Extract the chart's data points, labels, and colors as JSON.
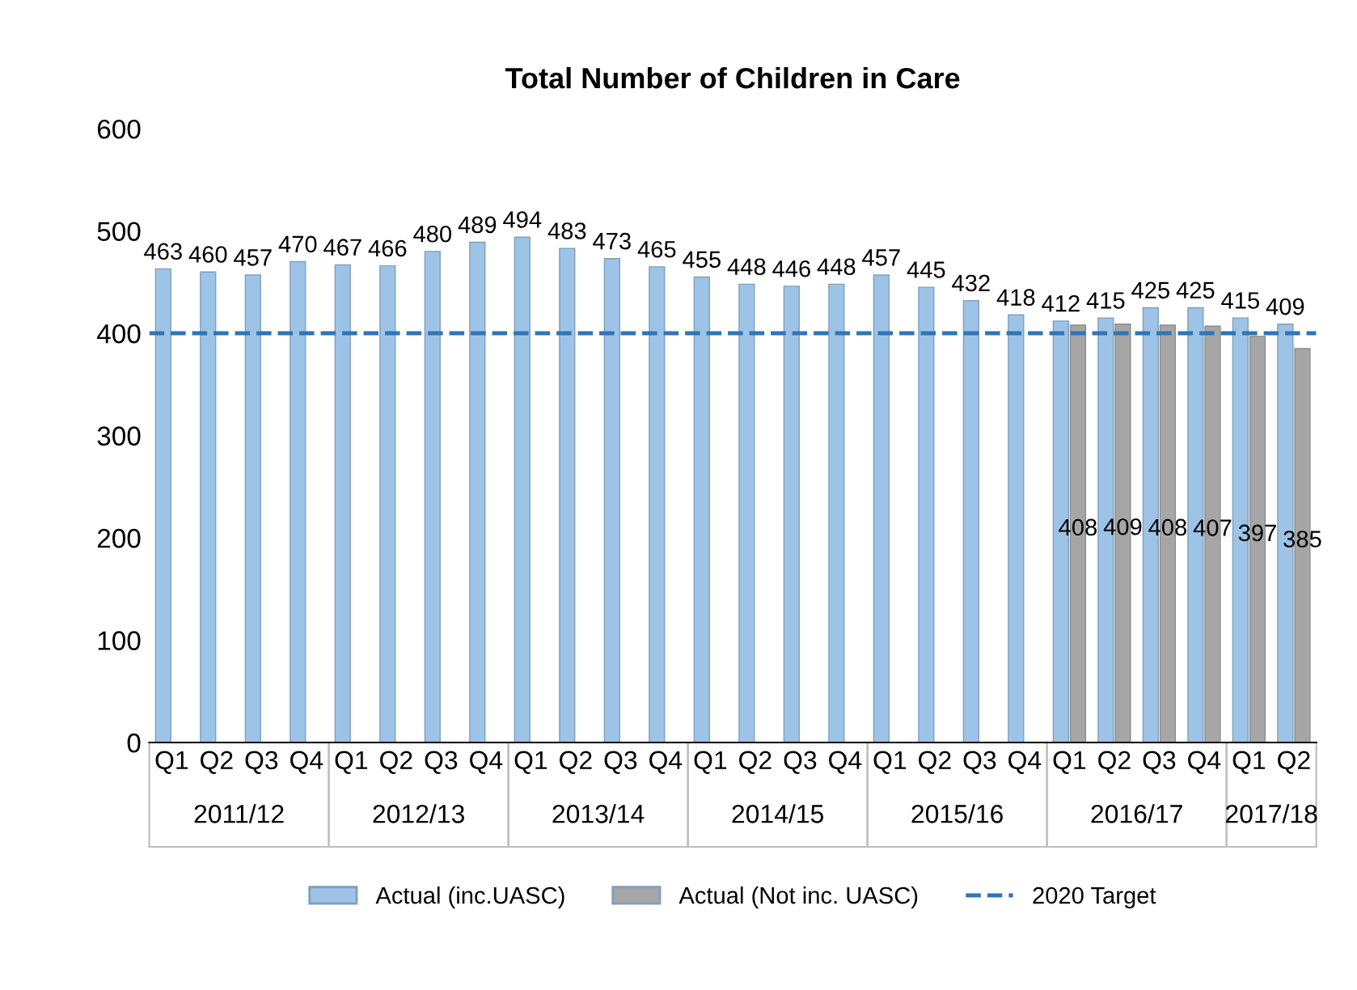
{
  "chart_data": {
    "type": "bar",
    "title": "Total Number of Children in Care",
    "categories": [
      "Q1",
      "Q2",
      "Q3",
      "Q4",
      "Q1",
      "Q2",
      "Q3",
      "Q4",
      "Q1",
      "Q2",
      "Q3",
      "Q4",
      "Q1",
      "Q2",
      "Q3",
      "Q4",
      "Q1",
      "Q2",
      "Q3",
      "Q4",
      "Q1",
      "Q2",
      "Q3",
      "Q4",
      "Q1",
      "Q2"
    ],
    "series": [
      {
        "name": "Actual (inc.UASC)",
        "color": "#9dc3e6",
        "values": [
          463,
          460,
          457,
          470,
          467,
          466,
          480,
          489,
          494,
          483,
          473,
          465,
          455,
          448,
          446,
          448,
          457,
          445,
          432,
          418,
          412,
          415,
          425,
          425,
          415,
          409
        ]
      },
      {
        "name": "Actual (Not inc. UASC)",
        "color": "#a6a6a6",
        "values": [
          null,
          null,
          null,
          null,
          null,
          null,
          null,
          null,
          null,
          null,
          null,
          null,
          null,
          null,
          null,
          null,
          null,
          null,
          null,
          null,
          408,
          409,
          408,
          407,
          397,
          385
        ]
      }
    ],
    "annotations": [
      "2011/12",
      "2012/13",
      "2013/14",
      "2014/15",
      "2015/16",
      "2016/17",
      "2017/18"
    ],
    "ref_lines": [
      {
        "axis": "y",
        "value": 400,
        "label": "2020 Target",
        "color": "#2e75b6",
        "line_style": "dashed"
      }
    ],
    "ylim": [
      0,
      600
    ],
    "yticks": [
      0,
      100,
      200,
      300,
      400,
      500,
      600
    ],
    "data_labels": true,
    "grid": false,
    "legend": "bottom"
  }
}
